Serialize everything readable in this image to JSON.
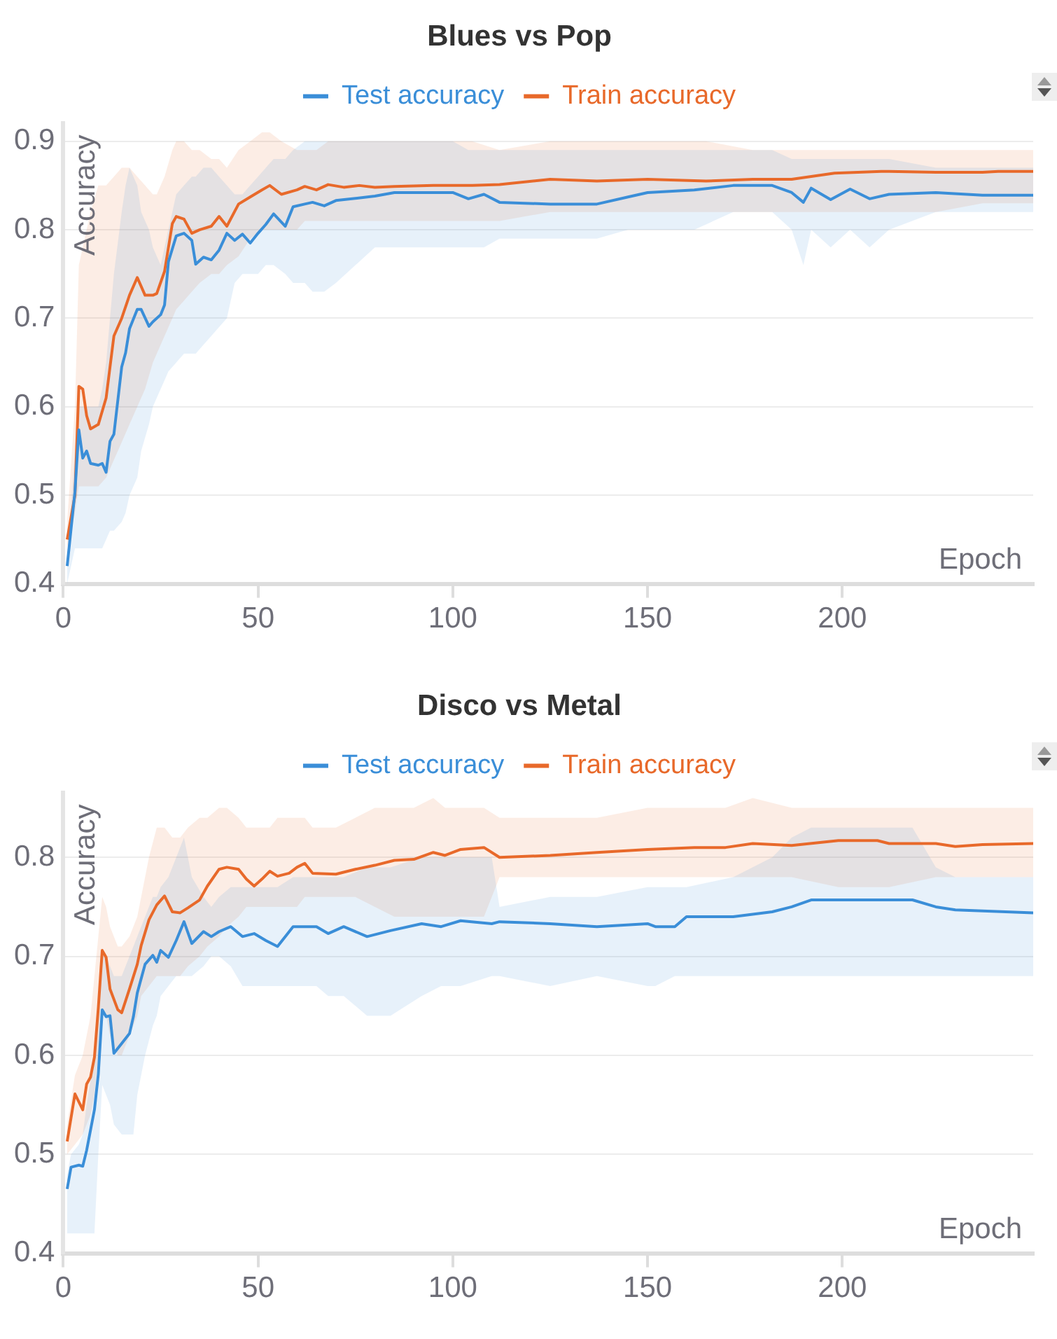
{
  "chart_data": [
    {
      "type": "line",
      "title": "Blues vs Pop",
      "xlabel": "Epoch",
      "ylabel": "Accuracy",
      "xlim": [
        0,
        249
      ],
      "xticks": [
        0,
        50,
        100,
        150,
        200
      ],
      "ylim": [
        0.4,
        0.92
      ],
      "yticks": [
        0.4,
        0.5,
        0.6,
        0.7,
        0.8,
        0.9
      ],
      "grid": "y",
      "legend": "top",
      "series": [
        {
          "name": "Test accuracy",
          "color": "#3a8ed8",
          "x": [
            1,
            3,
            4,
            5,
            6,
            7,
            9,
            10,
            11,
            12,
            13,
            15,
            16,
            17,
            19,
            20,
            22,
            23,
            25,
            26,
            27,
            29,
            31,
            33,
            34,
            36,
            38,
            40,
            42,
            44,
            46,
            48,
            50,
            52,
            54,
            57,
            59,
            62,
            64,
            67,
            70,
            80,
            85,
            100,
            104,
            108,
            112,
            125,
            137,
            145,
            150,
            162,
            172,
            182,
            187,
            190,
            192,
            197,
            202,
            207,
            212,
            224,
            236,
            249
          ],
          "values": [
            0.42,
            0.504,
            0.574,
            0.542,
            0.55,
            0.536,
            0.534,
            0.536,
            0.526,
            0.561,
            0.569,
            0.645,
            0.661,
            0.688,
            0.71,
            0.71,
            0.691,
            0.696,
            0.704,
            0.715,
            0.764,
            0.793,
            0.796,
            0.788,
            0.761,
            0.769,
            0.766,
            0.777,
            0.796,
            0.788,
            0.795,
            0.785,
            0.796,
            0.806,
            0.818,
            0.804,
            0.826,
            0.829,
            0.831,
            0.827,
            0.833,
            0.838,
            0.842,
            0.842,
            0.835,
            0.84,
            0.831,
            0.829,
            0.829,
            0.837,
            0.842,
            0.845,
            0.85,
            0.85,
            0.842,
            0.831,
            0.847,
            0.834,
            0.846,
            0.835,
            0.84,
            0.842,
            0.839,
            0.839
          ],
          "lower": [
            0.4,
            0.44,
            0.44,
            0.44,
            0.44,
            0.44,
            0.44,
            0.44,
            0.45,
            0.46,
            0.46,
            0.47,
            0.48,
            0.5,
            0.52,
            0.55,
            0.58,
            0.6,
            0.62,
            0.63,
            0.64,
            0.65,
            0.66,
            0.66,
            0.66,
            0.67,
            0.68,
            0.69,
            0.7,
            0.74,
            0.75,
            0.75,
            0.75,
            0.76,
            0.76,
            0.75,
            0.74,
            0.74,
            0.73,
            0.73,
            0.74,
            0.78,
            0.78,
            0.78,
            0.78,
            0.78,
            0.79,
            0.79,
            0.79,
            0.8,
            0.8,
            0.8,
            0.82,
            0.82,
            0.8,
            0.76,
            0.8,
            0.78,
            0.8,
            0.78,
            0.8,
            0.82,
            0.82,
            0.82
          ],
          "upper": [
            0.43,
            0.55,
            0.6,
            0.6,
            0.6,
            0.6,
            0.6,
            0.62,
            0.65,
            0.7,
            0.75,
            0.82,
            0.85,
            0.87,
            0.85,
            0.82,
            0.8,
            0.78,
            0.76,
            0.78,
            0.8,
            0.84,
            0.85,
            0.86,
            0.86,
            0.87,
            0.87,
            0.86,
            0.85,
            0.84,
            0.84,
            0.85,
            0.86,
            0.87,
            0.88,
            0.88,
            0.89,
            0.9,
            0.9,
            0.9,
            0.9,
            0.9,
            0.9,
            0.9,
            0.89,
            0.89,
            0.89,
            0.89,
            0.89,
            0.89,
            0.89,
            0.89,
            0.89,
            0.89,
            0.88,
            0.88,
            0.88,
            0.88,
            0.88,
            0.88,
            0.88,
            0.87,
            0.87,
            0.87
          ]
        },
        {
          "name": "Train accuracy",
          "color": "#e8692a",
          "x": [
            1,
            3,
            4,
            5,
            6,
            7,
            9,
            11,
            13,
            15,
            17,
            19,
            21,
            23,
            24,
            26,
            28,
            29,
            31,
            33,
            35,
            38,
            40,
            42,
            45,
            48,
            51,
            53,
            56,
            60,
            62,
            65,
            68,
            72,
            76,
            80,
            85,
            95,
            105,
            112,
            125,
            137,
            150,
            165,
            177,
            187,
            198,
            210,
            224,
            236,
            240,
            249
          ],
          "values": [
            0.45,
            0.5,
            0.623,
            0.62,
            0.59,
            0.575,
            0.58,
            0.61,
            0.68,
            0.7,
            0.726,
            0.746,
            0.726,
            0.726,
            0.728,
            0.753,
            0.807,
            0.815,
            0.812,
            0.796,
            0.8,
            0.804,
            0.815,
            0.804,
            0.829,
            0.837,
            0.845,
            0.85,
            0.84,
            0.845,
            0.849,
            0.845,
            0.851,
            0.848,
            0.85,
            0.848,
            0.849,
            0.85,
            0.85,
            0.851,
            0.857,
            0.855,
            0.857,
            0.855,
            0.857,
            0.857,
            0.864,
            0.866,
            0.865,
            0.865,
            0.866,
            0.866
          ],
          "lower": [
            0.44,
            0.48,
            0.51,
            0.51,
            0.51,
            0.51,
            0.51,
            0.52,
            0.54,
            0.56,
            0.58,
            0.6,
            0.62,
            0.65,
            0.66,
            0.68,
            0.7,
            0.71,
            0.72,
            0.73,
            0.74,
            0.75,
            0.75,
            0.76,
            0.77,
            0.79,
            0.8,
            0.8,
            0.8,
            0.8,
            0.81,
            0.81,
            0.81,
            0.81,
            0.81,
            0.81,
            0.81,
            0.81,
            0.81,
            0.81,
            0.82,
            0.82,
            0.82,
            0.82,
            0.82,
            0.82,
            0.82,
            0.82,
            0.82,
            0.83,
            0.83,
            0.83
          ],
          "upper": [
            0.47,
            0.6,
            0.76,
            0.78,
            0.8,
            0.82,
            0.85,
            0.85,
            0.86,
            0.87,
            0.87,
            0.86,
            0.85,
            0.84,
            0.84,
            0.86,
            0.89,
            0.9,
            0.9,
            0.89,
            0.89,
            0.88,
            0.88,
            0.87,
            0.89,
            0.9,
            0.91,
            0.91,
            0.9,
            0.89,
            0.89,
            0.89,
            0.9,
            0.9,
            0.9,
            0.9,
            0.9,
            0.9,
            0.9,
            0.89,
            0.9,
            0.9,
            0.9,
            0.9,
            0.89,
            0.89,
            0.89,
            0.89,
            0.89,
            0.89,
            0.89,
            0.89
          ]
        }
      ]
    },
    {
      "type": "line",
      "title": "Disco vs Metal",
      "xlabel": "Epoch",
      "ylabel": "Accuracy",
      "xlim": [
        0,
        249
      ],
      "xticks": [
        0,
        50,
        100,
        150,
        200
      ],
      "ylim": [
        0.4,
        0.865
      ],
      "yticks": [
        0.4,
        0.5,
        0.6,
        0.7,
        0.8
      ],
      "grid": "y",
      "legend": "top",
      "series": [
        {
          "name": "Test accuracy",
          "color": "#3a8ed8",
          "x": [
            1,
            2,
            4,
            5,
            6,
            8,
            9,
            10,
            11,
            12,
            13,
            15,
            17,
            18,
            19,
            21,
            23,
            24,
            25,
            27,
            29,
            31,
            33,
            36,
            38,
            40,
            43,
            46,
            49,
            52,
            55,
            59,
            65,
            68,
            72,
            78,
            84,
            92,
            97,
            102,
            110,
            112,
            125,
            137,
            150,
            152,
            157,
            160,
            172,
            182,
            187,
            192,
            218,
            224,
            229,
            249
          ],
          "values": [
            0.465,
            0.487,
            0.489,
            0.488,
            0.504,
            0.545,
            0.581,
            0.646,
            0.639,
            0.64,
            0.602,
            0.612,
            0.622,
            0.639,
            0.663,
            0.692,
            0.701,
            0.694,
            0.706,
            0.699,
            0.716,
            0.735,
            0.713,
            0.725,
            0.72,
            0.725,
            0.73,
            0.72,
            0.723,
            0.716,
            0.71,
            0.73,
            0.73,
            0.723,
            0.73,
            0.72,
            0.726,
            0.733,
            0.73,
            0.736,
            0.733,
            0.735,
            0.733,
            0.73,
            0.733,
            0.73,
            0.73,
            0.74,
            0.74,
            0.745,
            0.75,
            0.757,
            0.757,
            0.75,
            0.747,
            0.744
          ],
          "lower": [
            0.42,
            0.42,
            0.42,
            0.42,
            0.42,
            0.42,
            0.5,
            0.57,
            0.56,
            0.55,
            0.53,
            0.52,
            0.52,
            0.52,
            0.56,
            0.6,
            0.63,
            0.64,
            0.66,
            0.67,
            0.68,
            0.68,
            0.68,
            0.69,
            0.7,
            0.7,
            0.69,
            0.67,
            0.67,
            0.67,
            0.67,
            0.67,
            0.67,
            0.66,
            0.66,
            0.64,
            0.64,
            0.66,
            0.67,
            0.67,
            0.68,
            0.68,
            0.67,
            0.68,
            0.67,
            0.67,
            0.68,
            0.68,
            0.68,
            0.68,
            0.68,
            0.68,
            0.68,
            0.68,
            0.68,
            0.68
          ],
          "upper": [
            0.48,
            0.5,
            0.51,
            0.52,
            0.55,
            0.6,
            0.65,
            0.7,
            0.7,
            0.69,
            0.68,
            0.68,
            0.7,
            0.71,
            0.72,
            0.74,
            0.76,
            0.76,
            0.77,
            0.78,
            0.8,
            0.82,
            0.78,
            0.76,
            0.75,
            0.76,
            0.77,
            0.77,
            0.77,
            0.77,
            0.77,
            0.78,
            0.78,
            0.78,
            0.78,
            0.79,
            0.79,
            0.8,
            0.8,
            0.8,
            0.8,
            0.75,
            0.76,
            0.76,
            0.77,
            0.77,
            0.77,
            0.77,
            0.78,
            0.8,
            0.82,
            0.83,
            0.83,
            0.79,
            0.78,
            0.78
          ]
        },
        {
          "name": "Train accuracy",
          "color": "#e8692a",
          "x": [
            1,
            3,
            5,
            6,
            7,
            8,
            9,
            10,
            11,
            12,
            14,
            15,
            17,
            19,
            20,
            22,
            24,
            26,
            28,
            30,
            32,
            35,
            37,
            40,
            42,
            45,
            47,
            49,
            51,
            53,
            55,
            58,
            60,
            62,
            64,
            70,
            75,
            80,
            85,
            90,
            95,
            98,
            102,
            108,
            112,
            125,
            137,
            150,
            162,
            170,
            177,
            187,
            199,
            209,
            212,
            224,
            229,
            236,
            249
          ],
          "values": [
            0.513,
            0.561,
            0.545,
            0.571,
            0.578,
            0.598,
            0.648,
            0.706,
            0.699,
            0.667,
            0.646,
            0.643,
            0.667,
            0.692,
            0.711,
            0.737,
            0.752,
            0.761,
            0.745,
            0.744,
            0.749,
            0.757,
            0.771,
            0.788,
            0.79,
            0.788,
            0.778,
            0.771,
            0.778,
            0.786,
            0.781,
            0.784,
            0.79,
            0.794,
            0.784,
            0.783,
            0.788,
            0.792,
            0.797,
            0.798,
            0.805,
            0.802,
            0.808,
            0.81,
            0.8,
            0.802,
            0.805,
            0.808,
            0.81,
            0.81,
            0.814,
            0.812,
            0.817,
            0.817,
            0.814,
            0.814,
            0.811,
            0.813,
            0.814
          ],
          "lower": [
            0.5,
            0.51,
            0.52,
            0.53,
            0.54,
            0.56,
            0.6,
            0.64,
            0.64,
            0.62,
            0.6,
            0.6,
            0.62,
            0.64,
            0.66,
            0.67,
            0.68,
            0.68,
            0.68,
            0.68,
            0.69,
            0.7,
            0.71,
            0.72,
            0.73,
            0.74,
            0.75,
            0.75,
            0.75,
            0.75,
            0.75,
            0.75,
            0.75,
            0.76,
            0.76,
            0.76,
            0.76,
            0.75,
            0.74,
            0.74,
            0.74,
            0.74,
            0.74,
            0.74,
            0.78,
            0.78,
            0.78,
            0.78,
            0.78,
            0.78,
            0.78,
            0.78,
            0.77,
            0.77,
            0.77,
            0.78,
            0.78,
            0.78,
            0.78
          ],
          "upper": [
            0.53,
            0.58,
            0.6,
            0.62,
            0.64,
            0.68,
            0.72,
            0.76,
            0.75,
            0.73,
            0.71,
            0.71,
            0.72,
            0.74,
            0.76,
            0.8,
            0.83,
            0.83,
            0.82,
            0.82,
            0.83,
            0.84,
            0.84,
            0.85,
            0.85,
            0.84,
            0.83,
            0.83,
            0.83,
            0.83,
            0.84,
            0.84,
            0.84,
            0.84,
            0.83,
            0.83,
            0.84,
            0.85,
            0.85,
            0.85,
            0.86,
            0.85,
            0.85,
            0.85,
            0.84,
            0.84,
            0.84,
            0.85,
            0.85,
            0.85,
            0.86,
            0.85,
            0.85,
            0.85,
            0.85,
            0.85,
            0.85,
            0.85,
            0.85
          ]
        }
      ]
    }
  ]
}
